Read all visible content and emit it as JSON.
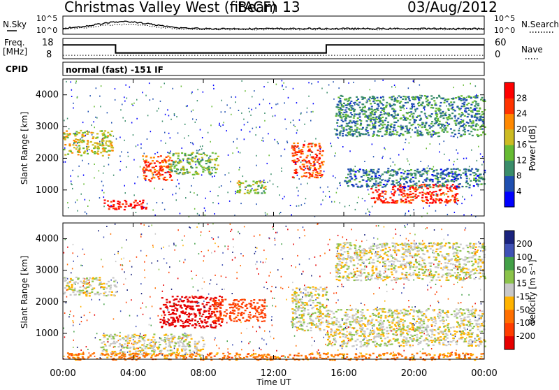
{
  "chart_data": {
    "type": "heatmap",
    "title": "Christmas Valley West (fitACF)",
    "beam_label": "Beam 13",
    "date": "03/Aug/2012",
    "xlabel": "Time UT",
    "x_ticks": [
      "00:00",
      "04:00",
      "08:00",
      "12:00",
      "16:00",
      "20:00",
      "00:00"
    ],
    "xlim_hours": [
      0,
      24
    ],
    "ylabel": "Slant Range [km]",
    "ylim_km": [
      180,
      4500
    ],
    "y_ticks": [
      1000,
      2000,
      3000,
      4000
    ],
    "noise_panel": {
      "left_label": "N.Sky",
      "right_label": "N.Search",
      "left_ticks": [
        "10^5",
        "10^0"
      ],
      "right_ticks": [
        "10^5",
        "10^0"
      ]
    },
    "freq_panel": {
      "left_label_line1": "Freq.",
      "left_label_line2": "[MHz]",
      "right_label": "Nave",
      "left_ticks": [
        18,
        8
      ],
      "right_ticks": [
        60,
        0
      ],
      "freq_steps": [
        {
          "from_hour": 0.0,
          "to_hour": 3.0,
          "value": 15.5
        },
        {
          "from_hour": 3.0,
          "to_hour": 15.0,
          "value": 10.0
        },
        {
          "from_hour": 15.0,
          "to_hour": 24.0,
          "value": 15.5
        }
      ],
      "nave_level": 10
    },
    "cpid": {
      "label": "CPID",
      "value": "normal (fast) -151 IF"
    },
    "power_panel": {
      "colorbar_label": "Power [dB]",
      "colorbar_ticks": [
        4,
        8,
        12,
        16,
        20,
        24,
        28
      ],
      "colorbar_range": [
        0,
        32
      ],
      "colors": [
        "#0000ff",
        "#1f4fb0",
        "#3a8d6a",
        "#66bb33",
        "#ccbb22",
        "#ff8800",
        "#ff3300",
        "#ff0000"
      ]
    },
    "velocity_panel": {
      "colorbar_label": "Velocity [m s⁻¹]",
      "colorbar_ticks": [
        200,
        100,
        50,
        15,
        -15,
        -50,
        -100,
        -200
      ],
      "colors": [
        "#1a237e",
        "#3f51b5",
        "#43a047",
        "#8bc34a",
        "#c8c8c8",
        "#ffb300",
        "#ff6f00",
        "#ff3d00",
        "#e60000"
      ]
    },
    "echo_regions": [
      {
        "panel": "power",
        "t0": 0.0,
        "t1": 2.8,
        "r0": 2100,
        "r1": 2900,
        "v": 18
      },
      {
        "panel": "power",
        "t0": 2.3,
        "t1": 4.7,
        "r0": 400,
        "r1": 700,
        "v": 30
      },
      {
        "panel": "power",
        "t0": 4.5,
        "t1": 6.2,
        "r0": 1300,
        "r1": 2100,
        "v": 26
      },
      {
        "panel": "power",
        "t0": 6.0,
        "t1": 8.8,
        "r0": 1500,
        "r1": 2200,
        "v": 14
      },
      {
        "panel": "power",
        "t0": 9.8,
        "t1": 11.5,
        "r0": 900,
        "r1": 1300,
        "v": 16
      },
      {
        "panel": "power",
        "t0": 13.0,
        "t1": 14.8,
        "r0": 1400,
        "r1": 2500,
        "v": 26
      },
      {
        "panel": "power",
        "t0": 17.5,
        "t1": 22.5,
        "r0": 600,
        "r1": 1200,
        "v": 28
      },
      {
        "panel": "power",
        "t0": 16.0,
        "t1": 24.0,
        "r0": 1100,
        "r1": 1700,
        "v": 8
      },
      {
        "panel": "power",
        "t0": 15.5,
        "t1": 24.0,
        "r0": 2700,
        "r1": 4000,
        "v": 10
      },
      {
        "panel": "velocity",
        "t0": 0.0,
        "t1": 3.0,
        "r0": 2200,
        "r1": 2800,
        "v": 0
      },
      {
        "panel": "velocity",
        "t0": 5.5,
        "t1": 9.0,
        "r0": 1200,
        "r1": 2200,
        "v": -200
      },
      {
        "panel": "velocity",
        "t0": 8.5,
        "t1": 11.5,
        "r0": 1400,
        "r1": 2100,
        "v": -100
      },
      {
        "panel": "velocity",
        "t0": 13.0,
        "t1": 15.0,
        "r0": 1100,
        "r1": 2500,
        "v": 0
      },
      {
        "panel": "velocity",
        "t0": 15.0,
        "t1": 24.0,
        "r0": 600,
        "r1": 1800,
        "v": 0
      },
      {
        "panel": "velocity",
        "t0": 15.5,
        "t1": 24.0,
        "r0": 2700,
        "r1": 3900,
        "v": 0
      },
      {
        "panel": "velocity",
        "t0": 2.0,
        "t1": 8.0,
        "r0": 300,
        "r1": 1000,
        "v": 0
      },
      {
        "panel": "velocity",
        "t0": 0.0,
        "t1": 24.0,
        "r0": 180,
        "r1": 400,
        "v": -50
      }
    ]
  }
}
